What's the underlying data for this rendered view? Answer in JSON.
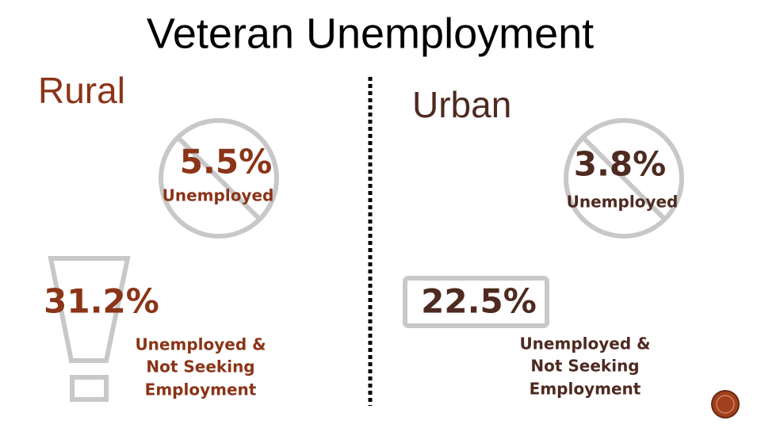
{
  "title": "Veteran Unemployment",
  "rural": {
    "label": "Rural",
    "unemployed": {
      "value": "5.5%",
      "label": "Unemployed"
    },
    "not_seeking": {
      "value": "31.2%",
      "label": [
        "Unemployed &",
        "Not Seeking",
        "Employment"
      ]
    }
  },
  "urban": {
    "label": "Urban",
    "unemployed": {
      "value": "3.8%",
      "label": "Unemployed"
    },
    "not_seeking": {
      "value": "22.5%",
      "label": [
        "Unemployed &",
        "Not Seeking",
        "Employment"
      ]
    }
  }
}
